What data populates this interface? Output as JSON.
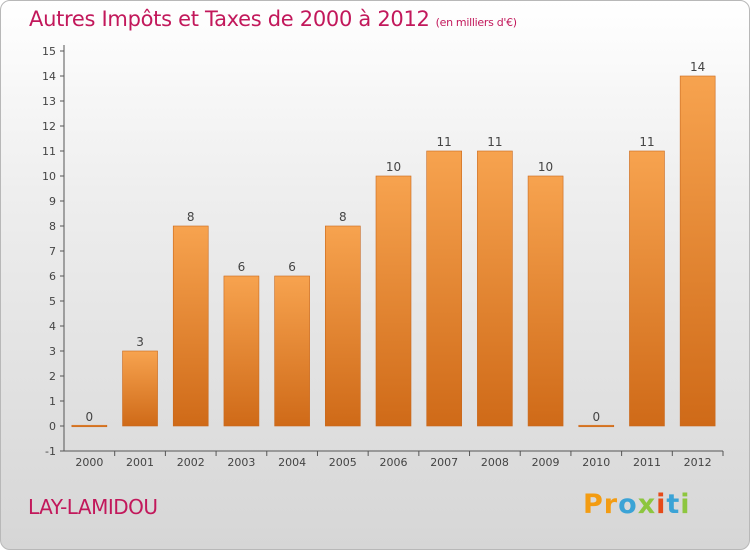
{
  "chart_data": {
    "type": "bar",
    "title": "Autres Impôts et Taxes de 2000 à 2012",
    "subtitle": "(en milliers d'€)",
    "categories": [
      "2000",
      "2001",
      "2002",
      "2003",
      "2004",
      "2005",
      "2006",
      "2007",
      "2008",
      "2009",
      "2010",
      "2011",
      "2012"
    ],
    "values": [
      0,
      3,
      8,
      6,
      6,
      8,
      10,
      11,
      11,
      10,
      0,
      11,
      14
    ],
    "data_labels": [
      "0",
      "3",
      "8",
      "6",
      "6",
      "8",
      "10",
      "11",
      "11",
      "10",
      "0",
      "11",
      "14"
    ],
    "y_ticks": [
      "-1",
      "0",
      "1",
      "2",
      "3",
      "4",
      "5",
      "6",
      "7",
      "8",
      "9",
      "10",
      "11",
      "12",
      "13",
      "14",
      "15"
    ],
    "ylim": [
      -1,
      15
    ],
    "grid": false,
    "bar_color": "#f0943f"
  },
  "footer": {
    "commune": "LAY-LAMIDOU",
    "brand": [
      "P",
      "r",
      "o",
      "x",
      "i",
      "t",
      "i"
    ],
    "brand_colors": [
      "#f39c12",
      "#f39c12",
      "#3ba3d6",
      "#8dc63f",
      "#e64a19",
      "#3ba3d6",
      "#8dc63f"
    ]
  }
}
